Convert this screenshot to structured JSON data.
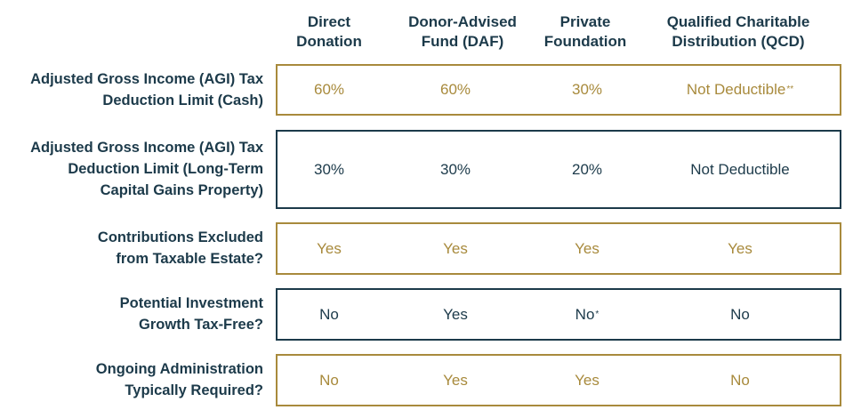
{
  "table": {
    "columns": [
      {
        "line1": "Direct",
        "line2": "Donation"
      },
      {
        "line1": "Donor-Advised",
        "line2": "Fund (DAF)"
      },
      {
        "line1": "Private",
        "line2": "Foundation"
      },
      {
        "line1": "Qualified Charitable",
        "line2": "Distribution (QCD)"
      }
    ],
    "rows": [
      {
        "label_lines": [
          "Adjusted Gross Income (AGI) Tax",
          "Deduction Limit (Cash)"
        ],
        "values": [
          "60%",
          "60%",
          "30%",
          "Not Deductible"
        ],
        "notes": [
          "",
          "",
          "",
          "**"
        ]
      },
      {
        "label_lines": [
          "Adjusted Gross Income (AGI) Tax",
          "Deduction Limit (Long-Term",
          "Capital Gains Property)"
        ],
        "values": [
          "30%",
          "30%",
          "20%",
          "Not Deductible"
        ],
        "notes": [
          "",
          "",
          "",
          ""
        ]
      },
      {
        "label_lines": [
          "Contributions Excluded",
          "from Taxable Estate?"
        ],
        "values": [
          "Yes",
          "Yes",
          "Yes",
          "Yes"
        ],
        "notes": [
          "",
          "",
          "",
          ""
        ]
      },
      {
        "label_lines": [
          "Potential Investment",
          "Growth Tax-Free?"
        ],
        "values": [
          "No",
          "Yes",
          "No",
          "No"
        ],
        "notes": [
          "",
          "",
          "*",
          ""
        ]
      },
      {
        "label_lines": [
          "Ongoing Administration",
          "Typically Required?"
        ],
        "values": [
          "No",
          "Yes",
          "Yes",
          "No"
        ],
        "notes": [
          "",
          "",
          "",
          ""
        ]
      }
    ]
  },
  "colors": {
    "navy": "#1c3a4a",
    "gold": "#a88a3c"
  }
}
